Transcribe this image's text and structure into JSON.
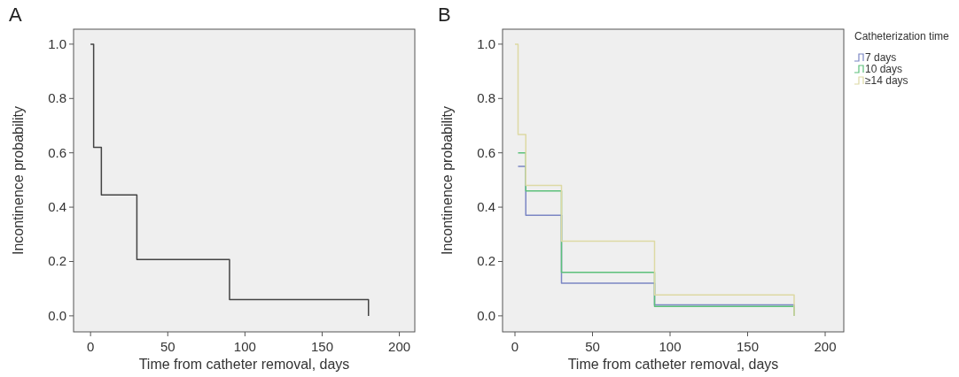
{
  "chart_data": [
    {
      "type": "step",
      "title": "A",
      "xlabel": "Time from catheter removal, days",
      "ylabel": "Incontinence probability",
      "xlim": [
        -11,
        210
      ],
      "ylim": [
        -0.059,
        1.055
      ],
      "xticks": [
        0,
        50,
        100,
        150,
        200
      ],
      "yticks": [
        {
          "value": 0,
          "label": "0.0"
        },
        {
          "value": 0.2,
          "label": "0.2"
        },
        {
          "value": 0.4,
          "label": "0.4"
        },
        {
          "value": 0.6,
          "label": "0.6"
        },
        {
          "value": 0.8,
          "label": "0.8"
        },
        {
          "value": 1,
          "label": "1.0"
        }
      ],
      "grid": false,
      "legend": false,
      "series": [
        {
          "color": "#444444",
          "x": [
            0,
            2,
            7,
            30,
            90,
            180
          ],
          "values": [
            1,
            0.62,
            0.445,
            0.207,
            0.06,
            0
          ]
        }
      ]
    },
    {
      "type": "step",
      "title": "B",
      "xlabel": "Time from catheter removal, days",
      "ylabel": "Incontinence probability",
      "legend_title": "Catheterization time",
      "xlim": [
        -8,
        212
      ],
      "ylim": [
        -0.059,
        1.055
      ],
      "xticks": [
        0,
        50,
        100,
        150,
        200
      ],
      "yticks": [
        {
          "value": 0,
          "label": "0.0"
        },
        {
          "value": 0.2,
          "label": "0.2"
        },
        {
          "value": 0.4,
          "label": "0.4"
        },
        {
          "value": 0.6,
          "label": "0.6"
        },
        {
          "value": 0.8,
          "label": "0.8"
        },
        {
          "value": 1,
          "label": "1.0"
        }
      ],
      "grid": false,
      "legend": "top right",
      "series": [
        {
          "name": "7 days",
          "color": "#7b86c4",
          "x": [
            2,
            7,
            30,
            90,
            180
          ],
          "values": [
            0.55,
            0.37,
            0.12,
            0.04,
            0
          ]
        },
        {
          "name": "10 days",
          "color": "#5cc07a",
          "x": [
            2,
            7,
            30,
            90,
            180
          ],
          "values": [
            0.6,
            0.46,
            0.16,
            0.035,
            0
          ]
        },
        {
          "name": "≥14 days",
          "color": "#ddd9a4",
          "x": [
            0,
            2,
            7,
            30,
            90,
            180
          ],
          "values": [
            1,
            0.667,
            0.48,
            0.275,
            0.077,
            0
          ]
        }
      ]
    }
  ]
}
